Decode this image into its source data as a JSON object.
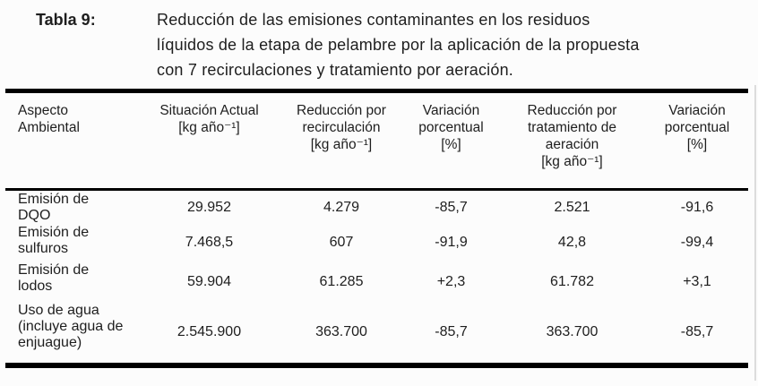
{
  "caption": {
    "label": "Tabla 9:",
    "lines": [
      "Reducción de las emisiones contaminantes en los residuos",
      "líquidos de la etapa de pelambre por la aplicación de la propuesta",
      "con 7 recirculaciones y tratamiento por aeración."
    ]
  },
  "table": {
    "columns": [
      {
        "id": "aspecto-ambiental",
        "header_lines": [
          "Aspecto",
          "Ambiental"
        ]
      },
      {
        "id": "situacion-actual",
        "header_lines": [
          "Situación Actual",
          "[kg año⁻¹]"
        ]
      },
      {
        "id": "reduccion-recirculacion",
        "header_lines": [
          "Reducción por",
          "recirculación",
          "[kg año⁻¹]"
        ]
      },
      {
        "id": "variacion-recirculacion",
        "header_lines": [
          "Variación",
          "porcentual",
          "[%]"
        ]
      },
      {
        "id": "reduccion-aeracion",
        "header_lines": [
          "Reducción por",
          "tratamiento de",
          "aeración",
          "[kg año⁻¹]"
        ]
      },
      {
        "id": "variacion-aeracion",
        "header_lines": [
          "Variación",
          "porcentual",
          "[%]"
        ]
      }
    ],
    "rows": [
      {
        "id": "dqo",
        "label_lines": [
          "Emisión de",
          "DQO"
        ],
        "values": [
          "29.952",
          "4.279",
          "-85,7",
          "2.521",
          "-91,6"
        ]
      },
      {
        "id": "sulfuros",
        "label_lines": [
          "Emisión de",
          "sulfuros"
        ],
        "values": [
          "7.468,5",
          "607",
          "-91,9",
          "42,8",
          "-99,4"
        ]
      },
      {
        "id": "lodos",
        "label_lines": [
          "Emisión de",
          "lodos"
        ],
        "values": [
          "59.904",
          "61.285",
          "+2,3",
          "61.782",
          "+3,1"
        ]
      },
      {
        "id": "uso-de-agua",
        "label_lines": [
          "Uso de agua",
          "(incluye agua de",
          "enjuague)"
        ],
        "values": [
          "2.545.900",
          "363.700",
          "-85,7",
          "363.700",
          "-85,7"
        ]
      }
    ]
  },
  "colors": {
    "background": "#fcfcfc",
    "text": "#1e1e1e",
    "rule": "#000000"
  }
}
